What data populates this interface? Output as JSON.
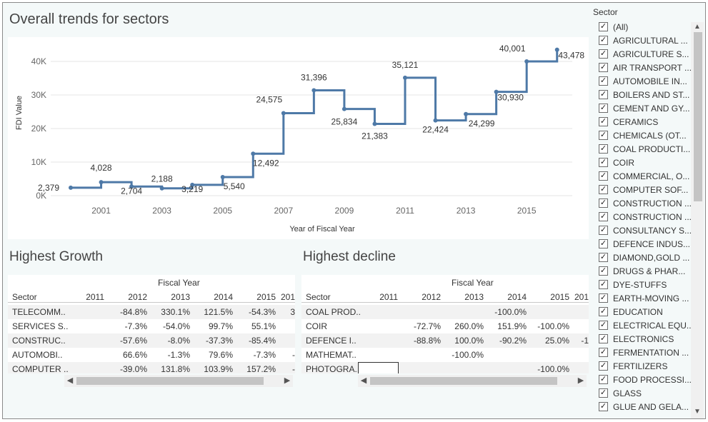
{
  "trends": {
    "title": "Overall trends for sectors",
    "y_axis_title": "FDI Value",
    "x_axis_title": "Year of Fiscal Year",
    "y_ticks": [
      "0K",
      "10K",
      "20K",
      "30K",
      "40K"
    ],
    "x_ticks": [
      "2001",
      "2003",
      "2005",
      "2007",
      "2009",
      "2011",
      "2013",
      "2015"
    ],
    "line_color": "#4e79a7"
  },
  "chart_data": {
    "type": "line",
    "title": "Overall trends for sectors",
    "xlabel": "Year of Fiscal Year",
    "ylabel": "FDI Value",
    "step": true,
    "ylim": [
      0,
      45000
    ],
    "x": [
      2000,
      2001,
      2002,
      2003,
      2004,
      2005,
      2006,
      2007,
      2008,
      2009,
      2010,
      2011,
      2012,
      2013,
      2014,
      2015,
      2016
    ],
    "values": [
      2379,
      4028,
      2704,
      2188,
      3219,
      5540,
      12492,
      24575,
      31396,
      25834,
      21383,
      35121,
      22424,
      24299,
      30930,
      40001,
      43478
    ],
    "labels": [
      "2,379",
      "4,028",
      "2,704",
      "2,188",
      "3,219",
      "5,540",
      "12,492",
      "24,575",
      "31,396",
      "25,834",
      "21,383",
      "35,121",
      "22,424",
      "24,299",
      "30,930",
      "40,001",
      "43,478"
    ]
  },
  "growth": {
    "title": "Highest Growth",
    "group_header": "Fiscal Year",
    "sector_header": "Sector",
    "years": [
      "2011",
      "2012",
      "2013",
      "2014",
      "2015",
      "201"
    ],
    "rows": [
      {
        "sector": "TELECOMM..",
        "values": [
          "",
          "-84.8%",
          "330.1%",
          "121.5%",
          "-54.3%",
          "3"
        ]
      },
      {
        "sector": "SERVICES S..",
        "values": [
          "",
          "-7.3%",
          "-54.0%",
          "99.7%",
          "55.1%",
          ""
        ]
      },
      {
        "sector": "CONSTRUC..",
        "values": [
          "",
          "-57.6%",
          "-8.0%",
          "-37.3%",
          "-85.4%",
          ""
        ]
      },
      {
        "sector": "AUTOMOBI..",
        "values": [
          "",
          "66.6%",
          "-1.3%",
          "79.6%",
          "-7.3%",
          "-"
        ]
      },
      {
        "sector": "COMPUTER ..",
        "values": [
          "",
          "-39.0%",
          "131.8%",
          "103.9%",
          "157.2%",
          "-"
        ]
      }
    ]
  },
  "decline": {
    "title": "Highest decline",
    "group_header": "Fiscal Year",
    "sector_header": "Sector",
    "years": [
      "2011",
      "2012",
      "2013",
      "2014",
      "2015",
      "201"
    ],
    "rows": [
      {
        "sector": "COAL PROD..",
        "values": [
          "",
          "",
          "",
          "-100.0%",
          "",
          ""
        ]
      },
      {
        "sector": "COIR",
        "values": [
          "",
          "-72.7%",
          "260.0%",
          "151.9%",
          "-100.0%",
          ""
        ]
      },
      {
        "sector": "DEFENCE I..",
        "values": [
          "",
          "-88.8%",
          "100.0%",
          "-90.2%",
          "25.0%",
          "-1"
        ]
      },
      {
        "sector": "MATHEMAT..",
        "values": [
          "",
          "",
          "-100.0%",
          "",
          "",
          ""
        ]
      },
      {
        "sector": "PHOTOGRA..",
        "values": [
          "",
          "",
          "",
          "",
          "-100.0%",
          ""
        ]
      }
    ]
  },
  "filter": {
    "title": "Sector",
    "items": [
      "(All)",
      "AGRICULTURAL ...",
      "AGRICULTURE S...",
      "AIR TRANSPORT ...",
      "AUTOMOBILE IN...",
      "BOILERS AND ST...",
      "CEMENT AND GY...",
      "CERAMICS",
      "CHEMICALS (OT...",
      "COAL PRODUCTI...",
      "COIR",
      "COMMERCIAL, O...",
      "COMPUTER SOF...",
      "CONSTRUCTION ...",
      "CONSTRUCTION ...",
      "CONSULTANCY S...",
      "DEFENCE INDUS...",
      "DIAMOND,GOLD ...",
      "DRUGS & PHAR...",
      "DYE-STUFFS",
      "EARTH-MOVING ...",
      "EDUCATION",
      "ELECTRICAL EQU...",
      "ELECTRONICS",
      "FERMENTATION ...",
      "FERTILIZERS",
      "FOOD PROCESSI...",
      "GLASS",
      "GLUE AND GELA..."
    ],
    "checkmark": "✓"
  }
}
